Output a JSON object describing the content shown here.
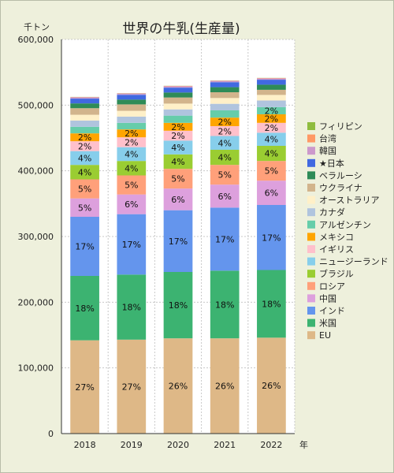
{
  "title": "世界の牛乳(生産量)",
  "unit_label": "千トン",
  "x_suffix": "年",
  "chart_data": {
    "type": "bar",
    "stacked": true,
    "categories": [
      "2018",
      "2019",
      "2020",
      "2021",
      "2022"
    ],
    "ylim": [
      0,
      600000
    ],
    "yticks": [
      0,
      100000,
      200000,
      300000,
      400000,
      500000,
      600000
    ],
    "ytick_labels": [
      "0",
      "100,000",
      "200,000",
      "300,000",
      "400,000",
      "500,000",
      "600,000"
    ],
    "grid": true,
    "legend_position": "right",
    "series": [
      {
        "name": "EU",
        "color": "#deb887",
        "values": [
          142000,
          143000,
          145000,
          145000,
          146000
        ],
        "labels": [
          "27%",
          "27%",
          "26%",
          "26%",
          "26%"
        ]
      },
      {
        "name": "米国",
        "color": "#3cb371",
        "values": [
          98000,
          99000,
          101000,
          103000,
          103000
        ],
        "labels": [
          "18%",
          "18%",
          "18%",
          "18%",
          "18%"
        ]
      },
      {
        "name": "インド",
        "color": "#6495ed",
        "values": [
          90000,
          92000,
          94000,
          96000,
          99000
        ],
        "labels": [
          "17%",
          "17%",
          "17%",
          "17%",
          "17%"
        ]
      },
      {
        "name": "中国",
        "color": "#dda0dd",
        "values": [
          28000,
          30000,
          33000,
          35000,
          37000
        ],
        "labels": [
          "5%",
          "6%",
          "6%",
          "6%",
          "6%"
        ]
      },
      {
        "name": "ロシア",
        "color": "#ffa07a",
        "values": [
          29000,
          29000,
          30000,
          30000,
          30000
        ],
        "labels": [
          "5%",
          "5%",
          "5%",
          "5%",
          "5%"
        ]
      },
      {
        "name": "ブラジル",
        "color": "#9acd32",
        "values": [
          22000,
          22000,
          22000,
          23000,
          23000
        ],
        "labels": [
          "4%",
          "4%",
          "4%",
          "4%",
          "4%"
        ]
      },
      {
        "name": "ニュージーランド",
        "color": "#87ceeb",
        "values": [
          21000,
          21000,
          21000,
          21000,
          20000
        ],
        "labels": [
          "4%",
          "4%",
          "4%",
          "4%",
          "4%"
        ]
      },
      {
        "name": "イギリス",
        "color": "#ffc0cb",
        "values": [
          15000,
          15000,
          15000,
          15000,
          15000
        ],
        "labels": [
          "2%",
          "2%",
          "2%",
          "2%",
          "2%"
        ]
      },
      {
        "name": "メキシコ",
        "color": "#ffa500",
        "values": [
          12000,
          12000,
          12000,
          13000,
          13000
        ],
        "labels": [
          "2%",
          "2%",
          "2%",
          "2%",
          "2%"
        ]
      },
      {
        "name": "アルゼンチン",
        "color": "#66cdaa",
        "values": [
          10000,
          10000,
          11000,
          11000,
          11000
        ],
        "labels": [
          "",
          "",
          "",
          "",
          "2%"
        ]
      },
      {
        "name": "カナダ",
        "color": "#b0c4de",
        "values": [
          9500,
          9500,
          9500,
          10000,
          10000
        ],
        "labels": [
          "",
          "",
          "",
          "",
          ""
        ]
      },
      {
        "name": "オーストラリア",
        "color": "#fff0c8",
        "values": [
          8800,
          8800,
          8800,
          8800,
          8500
        ],
        "labels": [
          "",
          "",
          "",
          "",
          ""
        ]
      },
      {
        "name": "ウクライナ",
        "color": "#d2b48c",
        "values": [
          10000,
          9800,
          9300,
          8800,
          7800
        ],
        "labels": [
          "",
          "",
          "",
          "",
          ""
        ]
      },
      {
        "name": "ベラルーシ",
        "color": "#2e8b57",
        "values": [
          7300,
          7300,
          7600,
          7700,
          7800
        ],
        "labels": [
          "",
          "",
          "",
          "",
          ""
        ]
      },
      {
        "name": "★日本",
        "color": "#4169e1",
        "values": [
          7300,
          7300,
          7400,
          7600,
          7600
        ],
        "labels": [
          "",
          "",
          "",
          "",
          ""
        ]
      },
      {
        "name": "韓国",
        "color": "#cc99cc",
        "values": [
          2000,
          2000,
          2100,
          2000,
          2000
        ],
        "labels": [
          "",
          "",
          "",
          "",
          ""
        ]
      },
      {
        "name": "台湾",
        "color": "#ff9966",
        "values": [
          400,
          400,
          500,
          500,
          500
        ],
        "labels": [
          "",
          "",
          "",
          "",
          ""
        ]
      },
      {
        "name": "フィリピン",
        "color": "#8fbc3f",
        "values": [
          200,
          200,
          200,
          200,
          200
        ],
        "labels": [
          "",
          "",
          "",
          "",
          ""
        ]
      }
    ]
  }
}
